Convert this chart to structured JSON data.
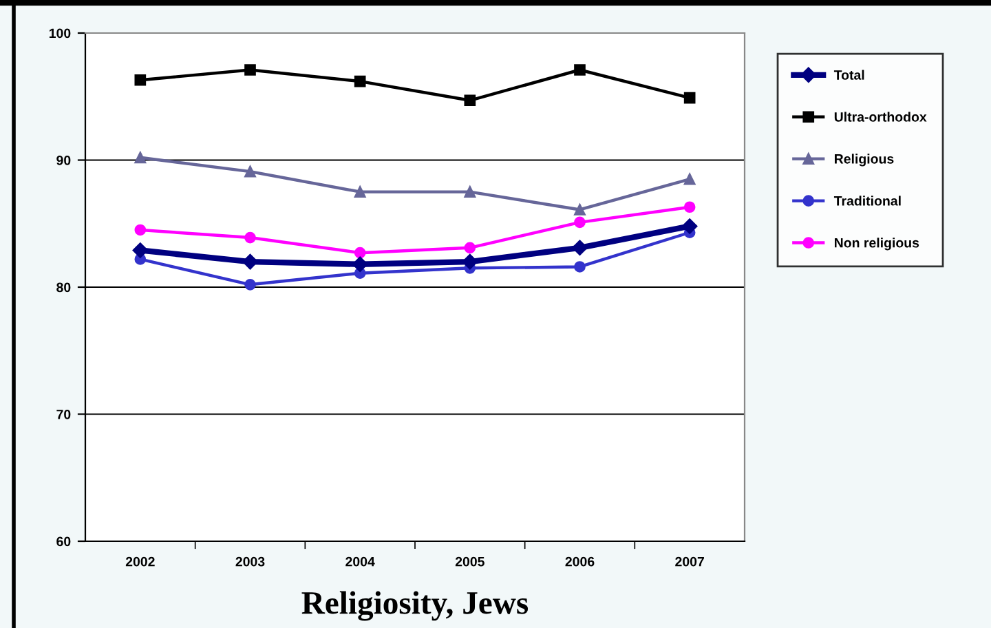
{
  "chart_data": {
    "type": "line",
    "title": "Religiosity, Jews",
    "categories": [
      "2002",
      "2003",
      "2004",
      "2005",
      "2006",
      "2007"
    ],
    "series": [
      {
        "name": "Total",
        "color": "#000080",
        "marker": "diamond",
        "values": [
          82.9,
          82.0,
          81.8,
          82.0,
          83.1,
          84.8
        ]
      },
      {
        "name": "Ultra-orthodox",
        "color": "#000000",
        "marker": "square",
        "values": [
          96.3,
          97.1,
          96.2,
          94.7,
          97.1,
          94.9
        ]
      },
      {
        "name": "Religious",
        "color": "#666699",
        "marker": "triangle",
        "values": [
          90.2,
          89.1,
          87.5,
          87.5,
          86.1,
          88.5
        ]
      },
      {
        "name": "Traditional",
        "color": "#3333cc",
        "marker": "circle",
        "values": [
          82.2,
          80.2,
          81.1,
          81.5,
          81.6,
          84.3
        ]
      },
      {
        "name": "Non religious",
        "color": "#ff00ff",
        "marker": "circle",
        "values": [
          84.5,
          83.9,
          82.7,
          83.1,
          85.1,
          86.3
        ]
      }
    ],
    "ylim": [
      60,
      100
    ],
    "yticks": [
      60,
      70,
      80,
      90,
      100
    ],
    "grid": "y",
    "legend": "right"
  }
}
